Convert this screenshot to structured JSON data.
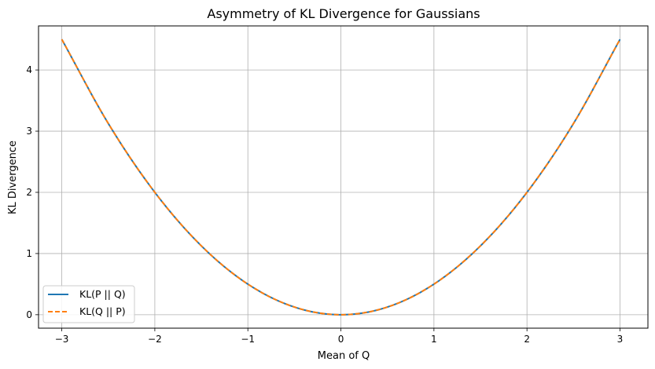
{
  "chart_data": {
    "type": "line",
    "title": "Asymmetry of KL Divergence for Gaussians",
    "xlabel": "Mean of Q",
    "ylabel": "KL Divergence",
    "xlim": [
      -3.25,
      3.3
    ],
    "ylim": [
      -0.22,
      4.72
    ],
    "xticks": [
      -3,
      -2,
      -1,
      0,
      1,
      2,
      3
    ],
    "yticks": [
      0,
      1,
      2,
      3,
      4
    ],
    "xtick_labels": [
      "−3",
      "−2",
      "−1",
      "0",
      "1",
      "2",
      "3"
    ],
    "ytick_labels": [
      "0",
      "1",
      "2",
      "3",
      "4"
    ],
    "grid": true,
    "legend_position": "lower-left",
    "x": [
      -3.0,
      -2.5,
      -2.0,
      -1.5,
      -1.0,
      -0.5,
      0.0,
      0.5,
      1.0,
      1.5,
      2.0,
      2.5,
      3.0
    ],
    "series": [
      {
        "name": "KL(P || Q)",
        "color": "#1f77b4",
        "style": "solid",
        "values": [
          4.5,
          3.125,
          2.0,
          1.125,
          0.5,
          0.125,
          0.0,
          0.125,
          0.5,
          1.125,
          2.0,
          3.125,
          4.5
        ]
      },
      {
        "name": "KL(Q || P)",
        "color": "#ff7f0e",
        "style": "dashed",
        "values": [
          4.5,
          3.125,
          2.0,
          1.125,
          0.5,
          0.125,
          0.0,
          0.125,
          0.5,
          1.125,
          2.0,
          3.125,
          4.5
        ]
      }
    ]
  }
}
